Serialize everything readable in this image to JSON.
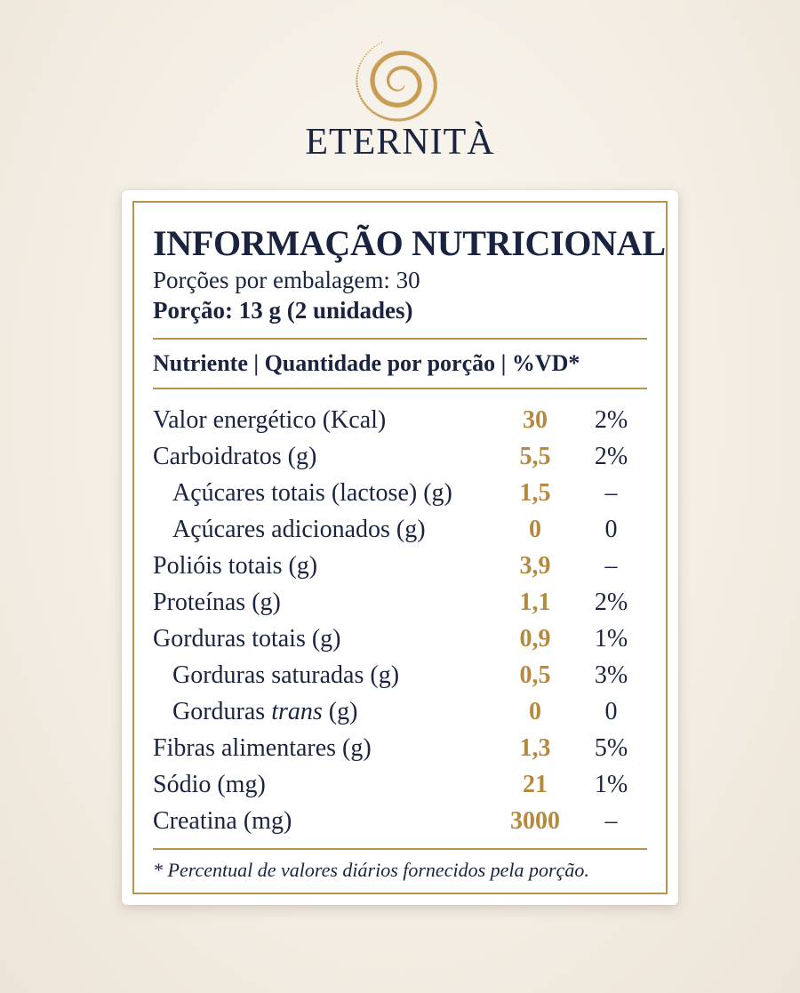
{
  "brand": {
    "name": "ETERNITÀ",
    "logo_icon": "golden-spiral-dots-icon"
  },
  "label": {
    "title": "INFORMAÇÃO NUTRICIONAL",
    "servings": "Porções por embalagem: 30",
    "portion": "Porção: 13 g (2 unidades)",
    "header": "Nutriente | Quantidade por porção | %VD*",
    "rows": [
      {
        "prefix": "Valor energético (Kcal)",
        "qty": "30",
        "vd": "2%"
      },
      {
        "prefix": "Carboidratos (g)",
        "qty": "5,5",
        "vd": "2%"
      },
      {
        "prefix": "Açúcares totais (lactose) (g)",
        "qty": "1,5",
        "vd": "–"
      },
      {
        "prefix": "Açúcares adicionados (g)",
        "qty": "0",
        "vd": "0"
      },
      {
        "prefix": "Polióis totais (g)",
        "qty": "3,9",
        "vd": "–"
      },
      {
        "prefix": "Proteínas (g)",
        "qty": "1,1",
        "vd": "2%"
      },
      {
        "prefix": "Gorduras totais (g)",
        "qty": "0,9",
        "vd": "1%"
      },
      {
        "prefix": "Gorduras saturadas (g)",
        "qty": "0,5",
        "vd": "3%"
      },
      {
        "prefix": "Gorduras ",
        "italic": "trans",
        "suffix": " (g)",
        "qty": "0",
        "vd": "0"
      },
      {
        "prefix": "Fibras alimentares (g)",
        "qty": "1,3",
        "vd": "5%"
      },
      {
        "prefix": "Sódio (mg)",
        "qty": "21",
        "vd": "1%"
      },
      {
        "prefix": "Creatina (mg)",
        "qty": "3000",
        "vd": "–"
      }
    ],
    "footnote": "* Percentual de valores diários fornecidos pela porção."
  },
  "colors": {
    "navy": "#1a2440",
    "gold": "#b89350",
    "gold_text": "#b68a3e"
  }
}
